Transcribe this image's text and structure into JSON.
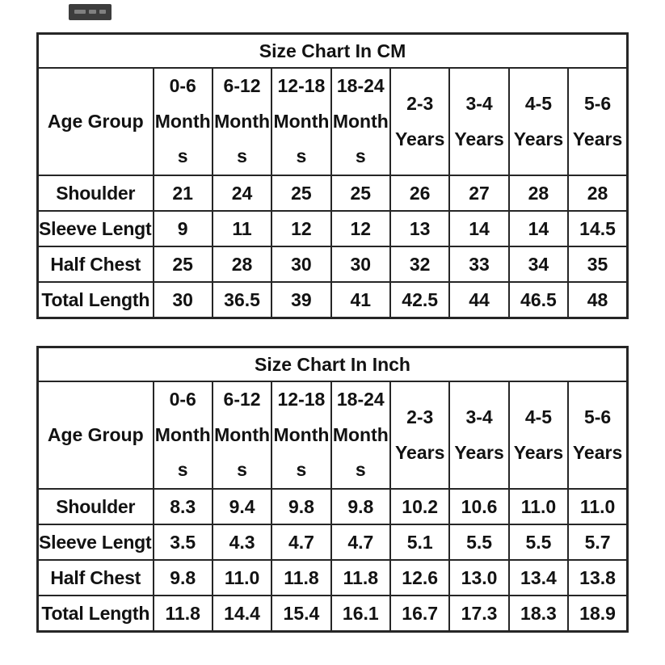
{
  "colors": {
    "background": "#ffffff",
    "border": "#262626",
    "text": "#121212",
    "watermark_badge": "#3d3d3d"
  },
  "watermark": {
    "description": "small dark badge with illegible marks, top-left"
  },
  "chart_data": [
    {
      "type": "table",
      "title": "Size Chart In CM",
      "header": [
        "Age Group",
        "0-6\nMonth\ns",
        "6-12\nMonth\ns",
        "12-18\nMonth\ns",
        "18-24\nMonth\ns",
        "2-3\nYears",
        "3-4\nYears",
        "4-5\nYears",
        "5-6\nYears"
      ],
      "rows": [
        {
          "label": "Shoulder",
          "values": [
            "21",
            "24",
            "25",
            "25",
            "26",
            "27",
            "28",
            "28"
          ]
        },
        {
          "label": "Sleeve Length",
          "values": [
            "9",
            "11",
            "12",
            "12",
            "13",
            "14",
            "14",
            "14.5"
          ]
        },
        {
          "label": "Half Chest",
          "values": [
            "25",
            "28",
            "30",
            "30",
            "32",
            "33",
            "34",
            "35"
          ]
        },
        {
          "label": "Total Length",
          "values": [
            "30",
            "36.5",
            "39",
            "41",
            "42.5",
            "44",
            "46.5",
            "48"
          ]
        }
      ]
    },
    {
      "type": "table",
      "title": "Size Chart In Inch",
      "header": [
        "Age Group",
        "0-6\nMonth\ns",
        "6-12\nMonth\ns",
        "12-18\nMonth\ns",
        "18-24\nMonth\ns",
        "2-3\nYears",
        "3-4\nYears",
        "4-5\nYears",
        "5-6\nYears"
      ],
      "rows": [
        {
          "label": "Shoulder",
          "values": [
            "8.3",
            "9.4",
            "9.8",
            "9.8",
            "10.2",
            "10.6",
            "11.0",
            "11.0"
          ]
        },
        {
          "label": "Sleeve Length",
          "values": [
            "3.5",
            "4.3",
            "4.7",
            "4.7",
            "5.1",
            "5.5",
            "5.5",
            "5.7"
          ]
        },
        {
          "label": "Half Chest",
          "values": [
            "9.8",
            "11.0",
            "11.8",
            "11.8",
            "12.6",
            "13.0",
            "13.4",
            "13.8"
          ]
        },
        {
          "label": "Total Length",
          "values": [
            "11.8",
            "14.4",
            "15.4",
            "16.1",
            "16.7",
            "17.3",
            "18.3",
            "18.9"
          ]
        }
      ]
    }
  ]
}
